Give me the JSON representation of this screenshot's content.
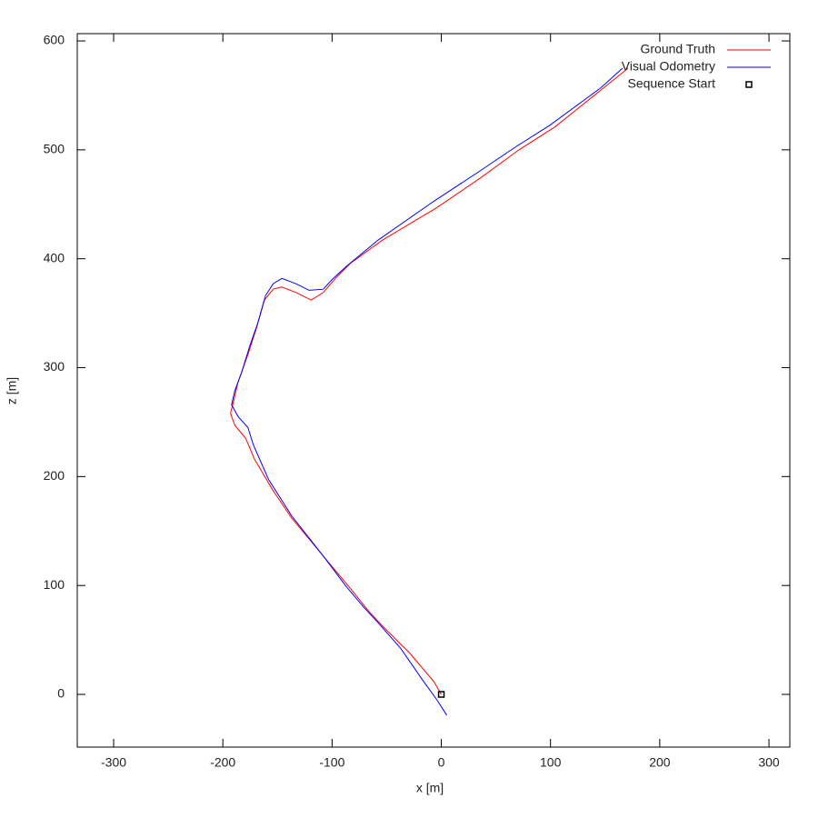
{
  "chart_data": {
    "type": "line",
    "xlabel": "x [m]",
    "ylabel": "z [m]",
    "xlim": [
      -333.3,
      319.1
    ],
    "xticks": [
      -300,
      -200,
      -100,
      0,
      100,
      200,
      300
    ],
    "ylim": [
      -48.4,
      606.7
    ],
    "yticks": [
      0,
      100,
      200,
      300,
      400,
      500,
      600
    ],
    "legend": "top-right",
    "series": [
      {
        "name": "Ground Truth",
        "color": "#ff0000",
        "style": "lines",
        "x": [
          0,
          -6.7,
          -29,
          -54,
          -67,
          -83,
          -108,
          -137,
          -154,
          -171,
          -179,
          -189,
          -193,
          -190,
          -186,
          -177,
          -169,
          -162,
          -154,
          -146,
          -133,
          -119,
          -108,
          -96,
          -83,
          -54,
          -4,
          37,
          71,
          104,
          150,
          171
        ],
        "values": [
          0,
          11.7,
          38,
          63,
          77,
          97,
          127,
          162,
          187,
          216,
          235,
          247,
          258,
          270,
          287,
          312,
          337,
          362,
          372,
          374,
          369,
          362,
          369,
          383,
          396,
          417,
          447,
          475,
          500,
          521,
          558,
          575
        ]
      },
      {
        "name": "Visual Odometry",
        "color": "#0000ff",
        "style": "lines",
        "x": [
          5,
          -4,
          -17,
          -37,
          -58,
          -71,
          -87,
          -108,
          -137,
          -158,
          -172,
          -177,
          -186,
          -192,
          -189,
          -183,
          -175,
          -168,
          -161,
          -154,
          -146,
          -133,
          -121,
          -108,
          -100,
          -87,
          -58,
          -8,
          33,
          67,
          100,
          146,
          166
        ],
        "values": [
          -19,
          -5,
          13,
          42,
          66,
          80,
          99,
          127,
          164,
          197,
          229,
          245,
          255,
          266,
          279,
          295,
          321,
          341,
          366,
          377,
          382,
          377,
          371,
          372,
          381,
          393,
          417,
          452,
          479,
          502,
          523,
          557,
          575
        ]
      },
      {
        "name": "Sequence Start",
        "color": "#000000",
        "style": "points",
        "x": [
          0
        ],
        "values": [
          0
        ]
      }
    ]
  }
}
